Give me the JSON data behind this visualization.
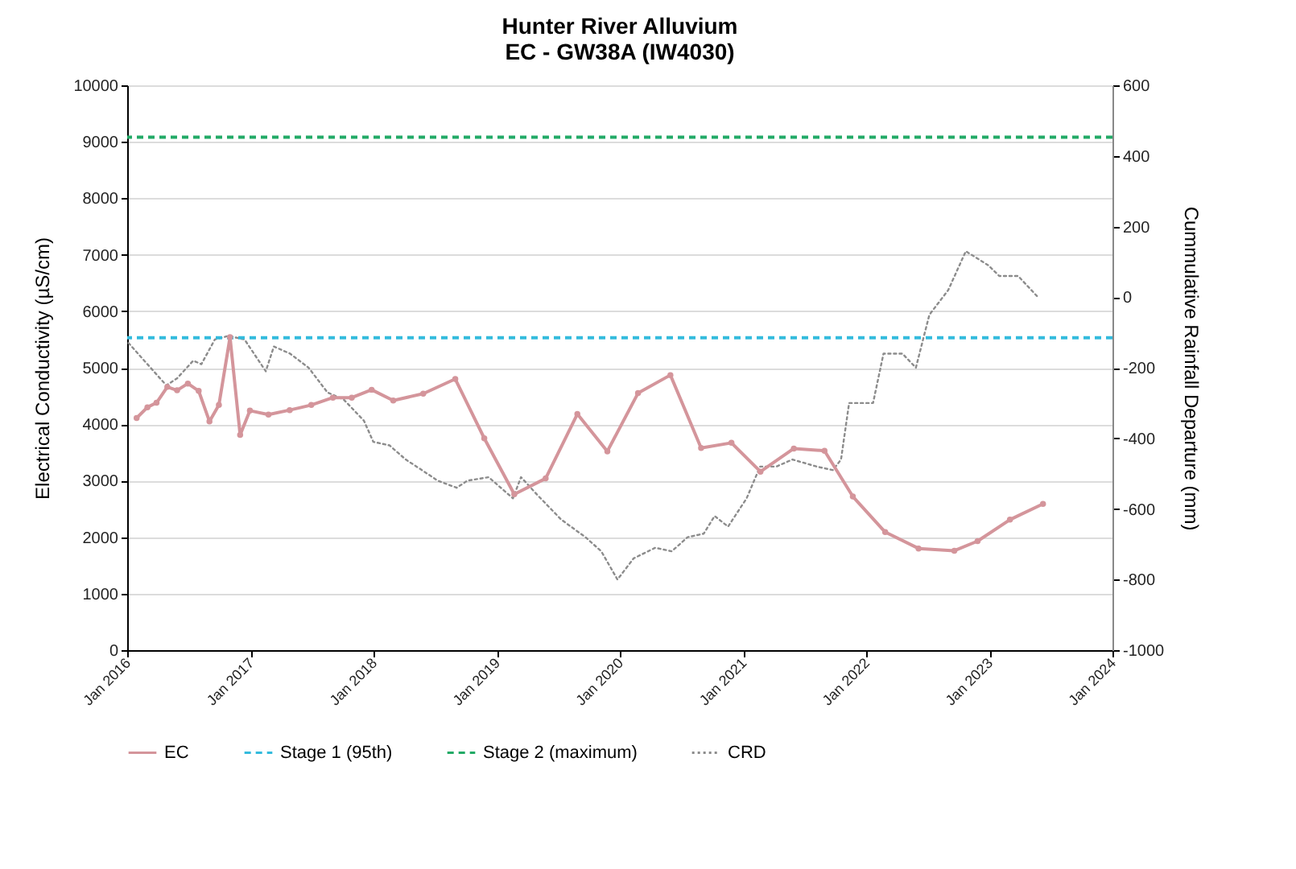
{
  "chart_data": {
    "type": "line",
    "title": "Hunter River Alluvium",
    "subtitle": "EC - GW38A (IW4030)",
    "ylabel": "Electrical Conductivity (µS/cm)",
    "y2label": "Cummulative Rainfall Departure (mm)",
    "xlim": [
      "2016",
      "2024"
    ],
    "xticks": [
      {
        "value": "2016",
        "label": "Jan 2016"
      },
      {
        "value": "2017",
        "label": "Jan 2017"
      },
      {
        "value": "2018",
        "label": "Jan 2018"
      },
      {
        "value": "2019",
        "label": "Jan 2019"
      },
      {
        "value": "2020",
        "label": "Jan 2020"
      },
      {
        "value": "2021",
        "label": "Jan 2021"
      },
      {
        "value": "2022",
        "label": "Jan 2022"
      },
      {
        "value": "2023",
        "label": "Jan 2023"
      },
      {
        "value": "2024",
        "label": "Jan 2024"
      }
    ],
    "ylim": [
      0,
      10000
    ],
    "yticks": [
      0,
      1000,
      2000,
      3000,
      4000,
      5000,
      6000,
      7000,
      8000,
      9000,
      10000
    ],
    "y2lim": [
      -1000,
      600
    ],
    "y2ticks": [
      -1000,
      -800,
      -600,
      -400,
      -200,
      0,
      200,
      400,
      600
    ],
    "grid": "y",
    "legend": "bottom",
    "series": [
      {
        "name": "EC",
        "color": "#d4959b",
        "marker": "circle",
        "line_style": "solid",
        "x": [
          "2016-01-29",
          "2016-03-01",
          "2016-03-28",
          "2016-04-29",
          "2016-05-28",
          "2016-06-29",
          "2016-07-31",
          "2016-09-01",
          "2016-09-29",
          "2016-11-01",
          "2016-12-01",
          "2016-12-30",
          "2017-02-23",
          "2017-04-27",
          "2017-06-30",
          "2017-09-02",
          "2017-10-28",
          "2017-12-26",
          "2018-02-28",
          "2018-05-28",
          "2018-08-31",
          "2018-11-25",
          "2019-02-22",
          "2019-05-26",
          "2019-08-28",
          "2019-11-25",
          "2020-02-24",
          "2020-05-30",
          "2020-08-29",
          "2020-11-27",
          "2021-02-21",
          "2021-05-31",
          "2021-08-30",
          "2021-11-22",
          "2022-02-26",
          "2022-06-05",
          "2022-09-19",
          "2022-11-27",
          "2023-03-03",
          "2023-06-09"
        ],
        "values": [
          4110,
          4300,
          4380,
          4660,
          4600,
          4720,
          4590,
          4050,
          4340,
          5540,
          3810,
          4240,
          4170,
          4250,
          4340,
          4470,
          4470,
          4610,
          4420,
          4540,
          4800,
          3750,
          2760,
          3040,
          4180,
          3520,
          4550,
          4870,
          3580,
          3670,
          3160,
          3570,
          3530,
          2720,
          2090,
          1800,
          1760,
          1930,
          2310,
          2590
        ]
      },
      {
        "name": "CRD",
        "color": "#8c8c8c",
        "axis": "y2",
        "marker": "none",
        "line_style": "dotted",
        "x": [
          "2016-01-05",
          "2016-04-26",
          "2016-05-28",
          "2016-07-15",
          "2016-08-08",
          "2016-09-17",
          "2016-10-27",
          "2016-12-14",
          "2017-02-15",
          "2017-03-11",
          "2017-04-28",
          "2017-06-22",
          "2017-08-17",
          "2017-10-04",
          "2017-12-03",
          "2017-12-31",
          "2018-02-17",
          "2018-04-06",
          "2018-05-24",
          "2018-07-10",
          "2018-09-04",
          "2018-10-06",
          "2018-12-08",
          "2019-02-18",
          "2019-03-14",
          "2019-05-01",
          "2019-07-11",
          "2019-09-21",
          "2019-11-07",
          "2019-12-25",
          "2020-02-11",
          "2020-04-15",
          "2020-06-03",
          "2020-07-20",
          "2020-09-06",
          "2020-10-08",
          "2020-11-17",
          "2021-01-11",
          "2021-02-20",
          "2021-04-09",
          "2021-05-27",
          "2021-08-07",
          "2021-09-24",
          "2021-10-18",
          "2021-11-11",
          "2022-01-21",
          "2022-02-21",
          "2022-04-18",
          "2022-05-28",
          "2022-07-07",
          "2022-09-01",
          "2022-10-23",
          "2022-12-29",
          "2023-01-30",
          "2023-03-27",
          "2023-05-25"
        ],
        "values": [
          -130,
          -250,
          -230,
          -180,
          -190,
          -120,
          -110,
          -120,
          -210,
          -140,
          -160,
          -200,
          -270,
          -290,
          -350,
          -410,
          -420,
          -460,
          -490,
          -520,
          -540,
          -520,
          -510,
          -570,
          -510,
          -560,
          -630,
          -680,
          -720,
          -800,
          -740,
          -710,
          -720,
          -680,
          -670,
          -620,
          -650,
          -570,
          -480,
          -480,
          -460,
          -480,
          -490,
          -460,
          -300,
          -300,
          -160,
          -160,
          -200,
          -50,
          20,
          130,
          90,
          60,
          60,
          0
        ]
      }
    ],
    "ref_lines": [
      {
        "axis": "y",
        "value": 5530,
        "label": "Stage 1 (95th)",
        "color": "#33bbdd",
        "line_style": "dashed"
      },
      {
        "axis": "y",
        "value": 9080,
        "label": "Stage 2 (maximum)",
        "color": "#22aa66",
        "line_style": "dashed"
      }
    ]
  }
}
